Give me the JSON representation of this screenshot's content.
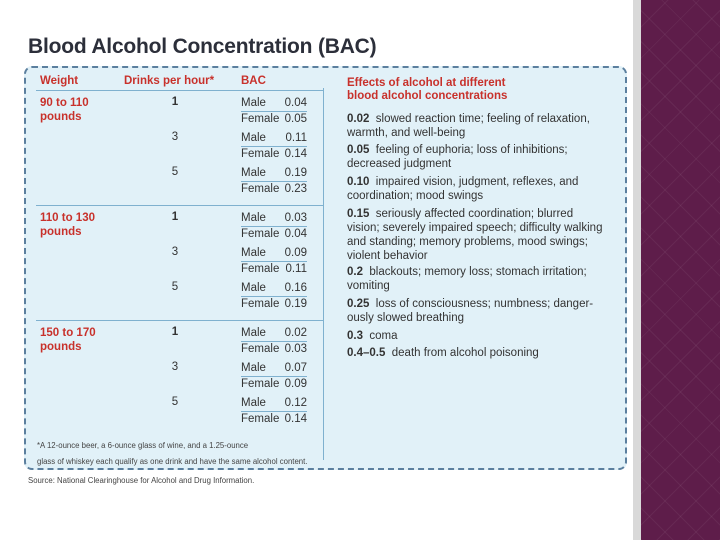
{
  "title": "Blood Alcohol Concentration (BAC)",
  "headers": {
    "weight": "Weight",
    "drinks": "Drinks per hour*",
    "bac": "BAC",
    "effects_line1": "Effects of alcohol at different",
    "effects_line2": "blood alcohol concentrations"
  },
  "groups": [
    {
      "weight_line1": "90 to 110",
      "weight_line2": "pounds",
      "rows": [
        {
          "drinks": "1",
          "male_label": "Male",
          "male": "0.04",
          "female_label": "Female",
          "female": "0.05"
        },
        {
          "drinks": "3",
          "male_label": "Male",
          "male": "0.11",
          "female_label": "Female",
          "female": "0.14"
        },
        {
          "drinks": "5",
          "male_label": "Male",
          "male": "0.19",
          "female_label": "Female",
          "female": "0.23"
        }
      ]
    },
    {
      "weight_line1": "110 to 130",
      "weight_line2": "pounds",
      "rows": [
        {
          "drinks": "1",
          "male_label": "Male",
          "male": "0.03",
          "female_label": "Female",
          "female": "0.04"
        },
        {
          "drinks": "3",
          "male_label": "Male",
          "male": "0.09",
          "female_label": "Female",
          "female": "0.11"
        },
        {
          "drinks": "5",
          "male_label": "Male",
          "male": "0.16",
          "female_label": "Female",
          "female": "0.19"
        }
      ]
    },
    {
      "weight_line1": "150 to 170",
      "weight_line2": "pounds",
      "rows": [
        {
          "drinks": "1",
          "male_label": "Male",
          "male": "0.02",
          "female_label": "Female",
          "female": "0.03"
        },
        {
          "drinks": "3",
          "male_label": "Male",
          "male": "0.07",
          "female_label": "Female",
          "female": "0.09"
        },
        {
          "drinks": "5",
          "male_label": "Male",
          "male": "0.12",
          "female_label": "Female",
          "female": "0.14"
        }
      ]
    }
  ],
  "effects": [
    {
      "level": "0.02",
      "text_line1": "slowed reaction time; feeling of relaxation,",
      "text_line2": "warmth, and well-being",
      "text_line3": ""
    },
    {
      "level": "0.05",
      "text_line1": "feeling of euphoria; loss of inhibitions;",
      "text_line2": "decreased judgment",
      "text_line3": ""
    },
    {
      "level": "0.10",
      "text_line1": "impaired vision, judgment, reflexes, and",
      "text_line2": "coordination; mood swings",
      "text_line3": ""
    },
    {
      "level": "0.15",
      "text_line1": "seriously affected coordination; blurred",
      "text_line2": "vision; severely impaired speech; difficulty walking",
      "text_line3": "and standing; memory problems, mood swings;",
      "text_line4": "violent behavior"
    },
    {
      "level": "0.2",
      "text_line1": "blackouts; memory loss; stomach irritation;",
      "text_line2": "vomiting",
      "text_line3": ""
    },
    {
      "level": "0.25",
      "text_line1": "loss of consciousness; numbness; danger-",
      "text_line2": "ously slowed breathing",
      "text_line3": ""
    },
    {
      "level": "0.3",
      "text_line1": "coma",
      "text_line2": "",
      "text_line3": ""
    },
    {
      "level": "0.4–0.5",
      "text_line1": "death from alcohol poisoning",
      "text_line2": "",
      "text_line3": ""
    }
  ],
  "footnote_line1": "*A 12-ounce beer, a 6-ounce glass of wine, and a 1.25-ounce",
  "footnote_line2": "glass of whiskey each qualify as one drink and have the same alcohol content.",
  "source": "Source: National Clearinghouse for Alcohol and Drug Information.",
  "colors": {
    "accent": "#c8312b",
    "panel": "#e1f1f8",
    "border": "#5b7f9e",
    "sidebar": "#5e1d4a"
  }
}
